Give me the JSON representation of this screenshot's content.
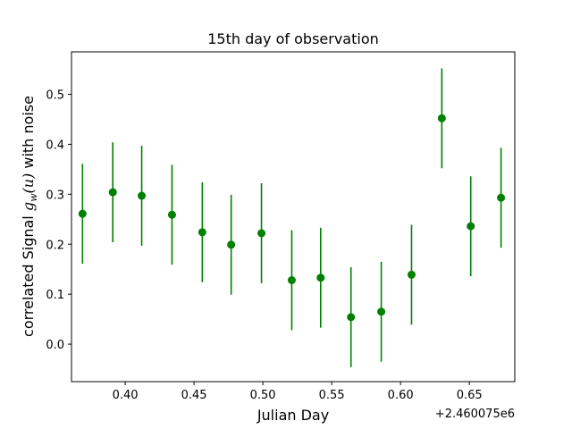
{
  "chart_data": {
    "type": "scatter",
    "title": "15th day of observation",
    "xlabel": "Julian Day",
    "ylabel": "correlated Signal g_w(u) with noise",
    "ylabel_parts": {
      "prefix": "correlated Signal ",
      "g": "g",
      "w": "w",
      "args": "(u)",
      "suffix": " with noise"
    },
    "x_offset_label": "+2.460075e6",
    "xlim": [
      0.361,
      0.683
    ],
    "ylim": [
      -0.075,
      0.585
    ],
    "x_ticks": [
      0.4,
      0.45,
      0.5,
      0.55,
      0.6,
      0.65
    ],
    "x_tick_labels": [
      "0.40",
      "0.45",
      "0.50",
      "0.55",
      "0.60",
      "0.65"
    ],
    "y_ticks": [
      0.0,
      0.1,
      0.2,
      0.3,
      0.4,
      0.5
    ],
    "y_tick_labels": [
      "0.0",
      "0.1",
      "0.2",
      "0.3",
      "0.4",
      "0.5"
    ],
    "grid": false,
    "color": "#008000",
    "series": [
      {
        "x": [
          0.369,
          0.391,
          0.412,
          0.434,
          0.456,
          0.477,
          0.499,
          0.521,
          0.542,
          0.564,
          0.586,
          0.608,
          0.63,
          0.651,
          0.673
        ],
        "y": [
          0.261,
          0.304,
          0.297,
          0.259,
          0.224,
          0.199,
          0.222,
          0.128,
          0.133,
          0.054,
          0.065,
          0.139,
          0.452,
          0.236,
          0.293
        ],
        "yerr": [
          0.1,
          0.1,
          0.1,
          0.1,
          0.1,
          0.1,
          0.1,
          0.1,
          0.1,
          0.1,
          0.1,
          0.1,
          0.1,
          0.1,
          0.1
        ]
      }
    ]
  }
}
